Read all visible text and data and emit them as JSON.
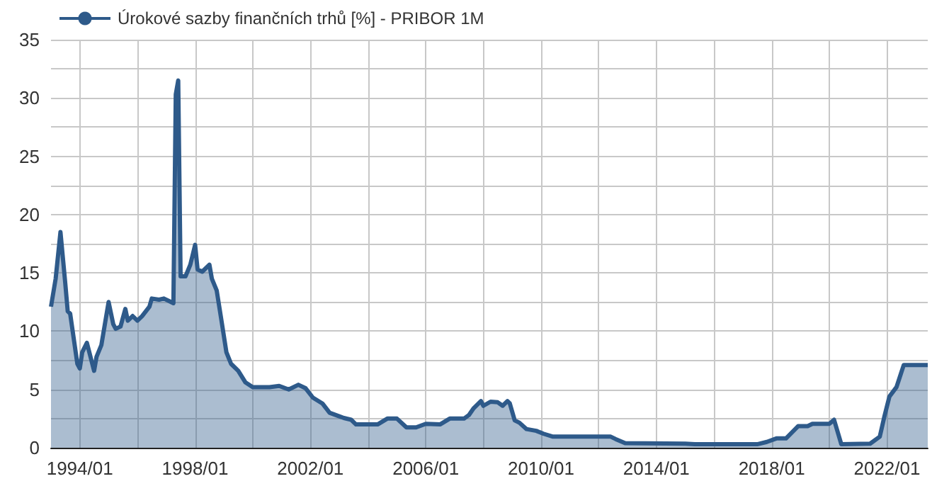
{
  "chart_data": {
    "type": "area",
    "legend": "top left",
    "grid": true,
    "xlim": [
      "1993-01",
      "2023-06"
    ],
    "ylim": [
      0,
      35
    ],
    "xticks": [
      {
        "value": "1994-01",
        "label": "1994/01"
      },
      {
        "value": "1996-01",
        "label": null
      },
      {
        "value": "1998-01",
        "label": "1998/01"
      },
      {
        "value": "2000-01",
        "label": null
      },
      {
        "value": "2002-01",
        "label": "2002/01"
      },
      {
        "value": "2004-01",
        "label": null
      },
      {
        "value": "2006-01",
        "label": "2006/01"
      },
      {
        "value": "2008-01",
        "label": null
      },
      {
        "value": "2010-01",
        "label": "2010/01"
      },
      {
        "value": "2012-01",
        "label": null
      },
      {
        "value": "2014-01",
        "label": "2014/01"
      },
      {
        "value": "2016-01",
        "label": null
      },
      {
        "value": "2018-01",
        "label": "2018/01"
      },
      {
        "value": "2020-01",
        "label": null
      },
      {
        "value": "2022-01",
        "label": "2022/01"
      }
    ],
    "yticks": [
      0,
      {
        "value": 2.5,
        "label": null
      },
      5,
      {
        "value": 7.5,
        "label": null
      },
      10,
      {
        "value": 12.5,
        "label": null
      },
      15,
      {
        "value": 17.5,
        "label": null
      },
      20,
      {
        "value": 22.5,
        "label": null
      },
      25,
      {
        "value": 27.5,
        "label": null
      },
      30,
      {
        "value": 32.5,
        "label": null
      },
      35
    ],
    "x": [
      "1993-01",
      "1993-03",
      "1993-05",
      "1993-07",
      "1993-08",
      "1993-09",
      "1993-12",
      "1994-01",
      "1994-02",
      "1994-04",
      "1994-07",
      "1994-08",
      "1994-10",
      "1995-01",
      "1995-03",
      "1995-04",
      "1995-06",
      "1995-08",
      "1995-09",
      "1995-11",
      "1996-01",
      "1996-03",
      "1996-06",
      "1996-07",
      "1996-10",
      "1996-12",
      "1997-03",
      "1997-04",
      "1997-05",
      "1997-06",
      "1997-07",
      "1997-09",
      "1997-11",
      "1998-01",
      "1998-02",
      "1998-04",
      "1998-07",
      "1998-08",
      "1998-10",
      "1998-12",
      "1999-02",
      "1999-04",
      "1999-07",
      "1999-10",
      "2000-01",
      "2000-08",
      "2000-12",
      "2001-04",
      "2001-08",
      "2001-11",
      "2002-02",
      "2002-06",
      "2002-09",
      "2003-01",
      "2003-03",
      "2003-06",
      "2003-08",
      "2004-05",
      "2004-09",
      "2005-01",
      "2005-05",
      "2005-09",
      "2006-01",
      "2006-07",
      "2006-11",
      "2007-05",
      "2007-07",
      "2007-09",
      "2007-12",
      "2008-01",
      "2008-04",
      "2008-07",
      "2008-09",
      "2008-11",
      "2008-12",
      "2009-02",
      "2009-04",
      "2009-07",
      "2009-11",
      "2010-02",
      "2010-06",
      "2012-06",
      "2012-08",
      "2012-12",
      "2015-01",
      "2015-05",
      "2017-07",
      "2017-11",
      "2018-03",
      "2018-07",
      "2018-12",
      "2019-04",
      "2019-06",
      "2020-01",
      "2020-03",
      "2020-06",
      "2021-06",
      "2021-10",
      "2021-12",
      "2022-02",
      "2022-05",
      "2022-08",
      "2023-06"
    ],
    "series": [
      {
        "name": "Úrokové sazby finančních trhů [%] - PRIBOR 1M",
        "color": "#2e5a8a",
        "values": [
          12.1,
          14.5,
          18.5,
          14.1,
          11.7,
          11.5,
          7.2,
          6.8,
          8.2,
          9.0,
          6.6,
          7.8,
          8.8,
          12.5,
          10.6,
          10.2,
          10.4,
          11.9,
          10.9,
          11.3,
          10.9,
          11.3,
          12.1,
          12.8,
          12.7,
          12.8,
          12.5,
          12.4,
          30.3,
          31.5,
          14.7,
          14.7,
          15.7,
          17.4,
          15.3,
          15.1,
          15.7,
          14.5,
          13.5,
          10.9,
          8.2,
          7.2,
          6.6,
          5.6,
          5.2,
          5.2,
          5.3,
          5.0,
          5.4,
          5.1,
          4.3,
          3.8,
          3.0,
          2.7,
          2.55,
          2.4,
          2.0,
          2.0,
          2.5,
          2.5,
          1.75,
          1.75,
          2.05,
          2.0,
          2.5,
          2.5,
          2.8,
          3.4,
          4.0,
          3.6,
          3.95,
          3.9,
          3.6,
          4.0,
          3.8,
          2.35,
          2.15,
          1.6,
          1.45,
          1.2,
          0.95,
          0.95,
          0.75,
          0.4,
          0.35,
          0.3,
          0.3,
          0.5,
          0.8,
          0.8,
          1.85,
          1.85,
          2.05,
          2.05,
          2.4,
          0.3,
          0.35,
          0.95,
          2.75,
          4.4,
          5.2,
          7.1,
          7.1
        ]
      }
    ]
  }
}
